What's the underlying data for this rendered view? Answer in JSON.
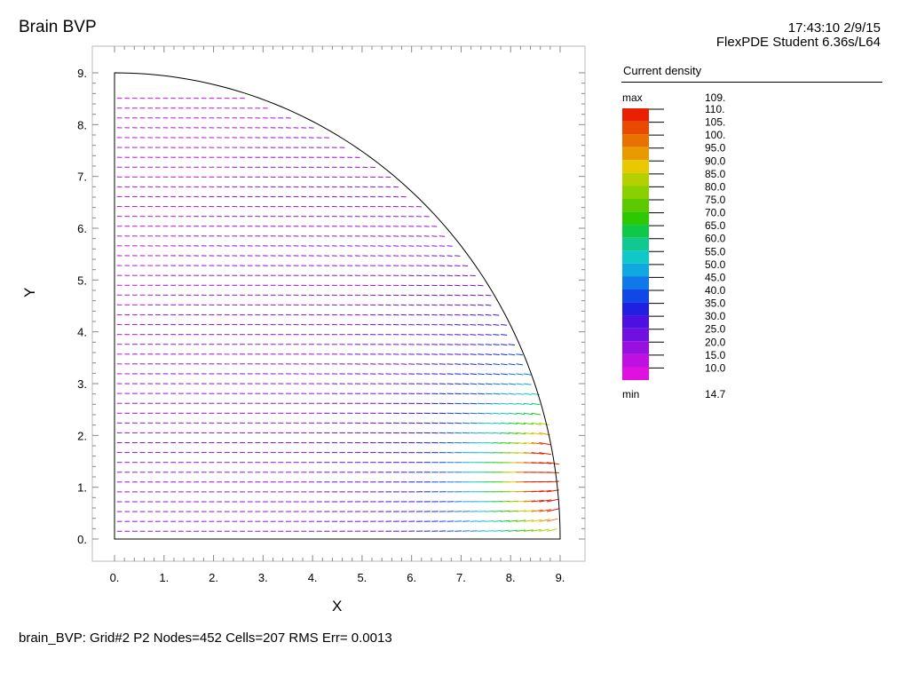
{
  "header": {
    "title": "Brain BVP",
    "timestamp": "17:43:10 2/9/15",
    "product": "FlexPDE Student 6.36s/L64"
  },
  "footer": {
    "status": "brain_BVP:  Grid#2  P2  Nodes=452 Cells=207 RMS Err= 0.0013"
  },
  "chart_data": {
    "type": "vector-field",
    "title": "Brain BVP",
    "xlabel": "X",
    "ylabel": "Y",
    "xlim": [
      0,
      9
    ],
    "ylim": [
      0,
      9
    ],
    "x_ticks": [
      "0.",
      "1.",
      "2.",
      "3.",
      "4.",
      "5.",
      "6.",
      "7.",
      "8.",
      "9."
    ],
    "y_ticks": [
      "0.",
      "1.",
      "2.",
      "3.",
      "4.",
      "5.",
      "6.",
      "7.",
      "8.",
      "9."
    ],
    "domain_boundary": "quarter circle of radius 9 centered at origin",
    "legend": {
      "title": "Current density",
      "max_label": "max",
      "max_value": "109.",
      "min_label": "min",
      "min_value": "14.7",
      "levels": [
        "110.",
        "105.",
        "100.",
        "95.0",
        "90.0",
        "85.0",
        "80.0",
        "75.0",
        "70.0",
        "65.0",
        "60.0",
        "55.0",
        "50.0",
        "45.0",
        "40.0",
        "35.0",
        "30.0",
        "25.0",
        "20.0",
        "15.0",
        "10.0"
      ],
      "colors": [
        "#e82000",
        "#e84a00",
        "#e87200",
        "#e89a00",
        "#e8c800",
        "#b4d000",
        "#88d000",
        "#5cc800",
        "#2cc800",
        "#10c848",
        "#10c890",
        "#10c8c8",
        "#10a8e0",
        "#1078e8",
        "#1048e8",
        "#2020e0",
        "#4c10e0",
        "#7010e0",
        "#9810e0",
        "#c010e0",
        "#e010e0"
      ]
    }
  }
}
